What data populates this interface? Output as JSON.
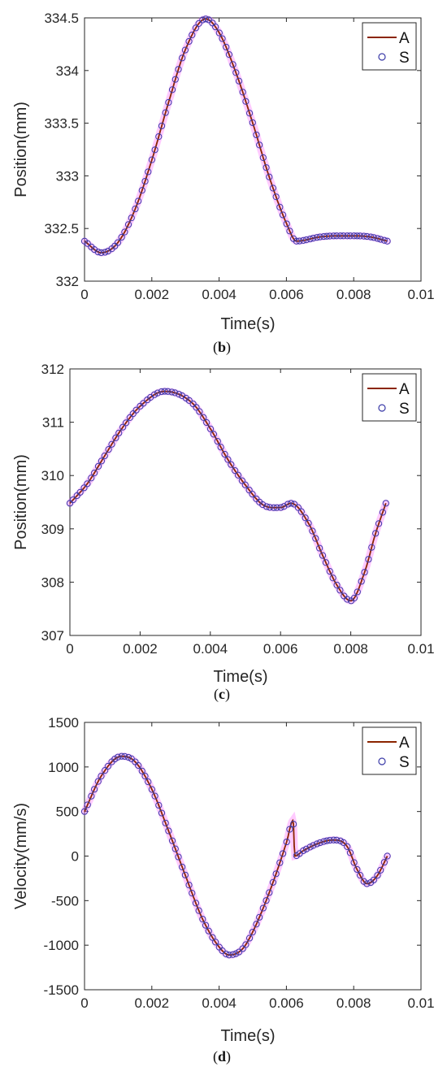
{
  "chart_data": [
    {
      "type": "line",
      "panel_label": "b",
      "xlabel": "Time(s)",
      "ylabel": "Position(mm)",
      "xlim": [
        0,
        0.01
      ],
      "ylim": [
        332,
        334.5
      ],
      "x_ticks": [
        "0",
        "0.002",
        "0.004",
        "0.006",
        "0.008",
        "0.01"
      ],
      "y_ticks": [
        "332",
        "332.5",
        "333",
        "333.5",
        "334",
        "334.5"
      ],
      "legend": {
        "position": "top-right",
        "entries": [
          "A",
          "S"
        ]
      },
      "colors": {
        "A": "#8B2500",
        "S": "#3b3ba8",
        "halo": "#ff66ff"
      },
      "series": [
        {
          "name": "A",
          "style": "line",
          "x": [
            0,
            0.0005,
            0.001,
            0.0015,
            0.002,
            0.0025,
            0.003,
            0.0036,
            0.004,
            0.0045,
            0.005,
            0.0055,
            0.006,
            0.0063,
            0.007,
            0.0075,
            0.008,
            0.0085,
            0.009
          ],
          "y": [
            332.38,
            332.27,
            332.37,
            332.68,
            333.15,
            333.7,
            334.2,
            334.49,
            334.36,
            333.98,
            333.5,
            332.98,
            332.55,
            332.38,
            332.42,
            332.43,
            332.43,
            332.42,
            332.38
          ]
        },
        {
          "name": "S",
          "style": "markers",
          "x": [
            0,
            0.0005,
            0.001,
            0.0015,
            0.002,
            0.0025,
            0.003,
            0.0036,
            0.004,
            0.0045,
            0.005,
            0.0055,
            0.006,
            0.0063,
            0.007,
            0.0075,
            0.008,
            0.0085,
            0.009
          ],
          "y": [
            332.38,
            332.27,
            332.37,
            332.68,
            333.15,
            333.7,
            334.2,
            334.49,
            334.36,
            333.98,
            333.5,
            332.98,
            332.55,
            332.38,
            332.42,
            332.43,
            332.43,
            332.42,
            332.38
          ]
        }
      ]
    },
    {
      "type": "line",
      "panel_label": "c",
      "xlabel": "Time(s)",
      "ylabel": "Position(mm)",
      "xlim": [
        0,
        0.01
      ],
      "ylim": [
        307,
        312
      ],
      "x_ticks": [
        "0",
        "0.002",
        "0.004",
        "0.006",
        "0.008",
        "0.01"
      ],
      "y_ticks": [
        "307",
        "308",
        "309",
        "310",
        "311",
        "312"
      ],
      "legend": {
        "position": "top-right",
        "entries": [
          "A",
          "S"
        ]
      },
      "colors": {
        "A": "#8B2500",
        "S": "#3b3ba8",
        "halo": "#ff66ff"
      },
      "series": [
        {
          "name": "A",
          "style": "line",
          "x": [
            0,
            0.0005,
            0.001,
            0.0015,
            0.002,
            0.0027,
            0.0035,
            0.004,
            0.0045,
            0.005,
            0.0055,
            0.006,
            0.0063,
            0.0068,
            0.0072,
            0.0076,
            0.008,
            0.0084,
            0.0087,
            0.009
          ],
          "y": [
            309.48,
            309.85,
            310.38,
            310.9,
            311.3,
            311.58,
            311.35,
            310.88,
            310.3,
            309.82,
            309.45,
            309.4,
            309.48,
            309.1,
            308.5,
            307.95,
            307.65,
            308.2,
            308.9,
            309.48
          ]
        },
        {
          "name": "S",
          "style": "markers",
          "x": [
            0,
            0.0005,
            0.001,
            0.0015,
            0.002,
            0.0027,
            0.0035,
            0.004,
            0.0045,
            0.005,
            0.0055,
            0.006,
            0.0063,
            0.0068,
            0.0072,
            0.0076,
            0.008,
            0.0084,
            0.0087,
            0.009
          ],
          "y": [
            309.48,
            309.85,
            310.38,
            310.9,
            311.3,
            311.58,
            311.35,
            310.88,
            310.3,
            309.82,
            309.45,
            309.4,
            309.48,
            309.1,
            308.5,
            307.95,
            307.65,
            308.2,
            308.9,
            309.48
          ]
        }
      ]
    },
    {
      "type": "line",
      "panel_label": "d",
      "xlabel": "Time(s)",
      "ylabel": "Velocity(mm/s)",
      "xlim": [
        0,
        0.01
      ],
      "ylim": [
        -1500,
        1500
      ],
      "x_ticks": [
        "0",
        "0.002",
        "0.004",
        "0.006",
        "0.008",
        "0.01"
      ],
      "y_ticks": [
        "-1500",
        "-1000",
        "-500",
        "0",
        "500",
        "1000",
        "1500"
      ],
      "legend": {
        "position": "top-right",
        "entries": [
          "A",
          "S"
        ]
      },
      "colors": {
        "A": "#8B2500",
        "S": "#3b3ba8",
        "halo": "#ff66ff"
      },
      "series": [
        {
          "name": "A",
          "style": "line",
          "x": [
            0,
            0.0005,
            0.0011,
            0.0015,
            0.002,
            0.0025,
            0.003,
            0.0035,
            0.004,
            0.0043,
            0.0047,
            0.005,
            0.0055,
            0.006,
            0.0062,
            0.00625,
            0.0065,
            0.007,
            0.0074,
            0.0078,
            0.0081,
            0.0084,
            0.0087,
            0.009
          ],
          "y": [
            500,
            900,
            1120,
            1060,
            750,
            280,
            -220,
            -700,
            -1020,
            -1110,
            -1040,
            -850,
            -400,
            150,
            400,
            0,
            60,
            150,
            180,
            110,
            -150,
            -310,
            -220,
            0
          ]
        },
        {
          "name": "S",
          "style": "markers",
          "x": [
            0,
            0.0005,
            0.0011,
            0.0015,
            0.002,
            0.0025,
            0.003,
            0.0035,
            0.004,
            0.0043,
            0.0047,
            0.005,
            0.0055,
            0.006,
            0.0062,
            0.00625,
            0.0065,
            0.007,
            0.0074,
            0.0078,
            0.0081,
            0.0084,
            0.0087,
            0.009
          ],
          "y": [
            500,
            900,
            1120,
            1060,
            750,
            280,
            -220,
            -700,
            -1020,
            -1110,
            -1040,
            -850,
            -400,
            150,
            400,
            0,
            60,
            150,
            180,
            110,
            -150,
            -310,
            -220,
            0
          ]
        }
      ]
    }
  ]
}
